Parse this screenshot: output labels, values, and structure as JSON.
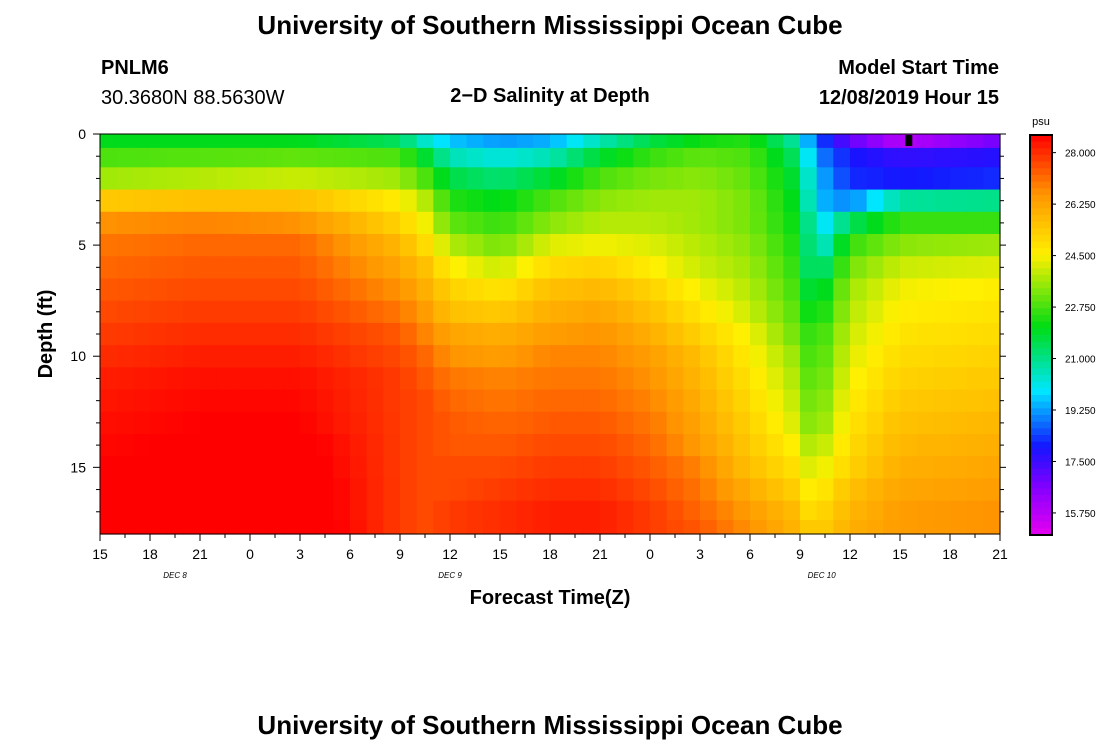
{
  "page": {
    "title_top": "University of Southern Mississippi Ocean Cube",
    "title_bottom": "University of Southern Mississippi Ocean Cube",
    "station_id": "PNLM6",
    "station_coords": "30.3680N 88.5630W",
    "chart_title": "2−D Salinity at Depth",
    "model_start_label": "Model Start Time",
    "model_start_value": "12/08/2019 Hour 15"
  },
  "chart_data": {
    "type": "heatmap",
    "title": "2−D Salinity at Depth",
    "xlabel": "Forecast Time(Z)",
    "ylabel": "Depth (ft)",
    "x_hours_range": [
      0,
      54
    ],
    "x_tick_labels": [
      "15",
      "18",
      "21",
      "0",
      "3",
      "6",
      "9",
      "12",
      "15",
      "18",
      "21",
      "0",
      "3",
      "6",
      "9",
      "12",
      "15",
      "18",
      "21"
    ],
    "day_labels": [
      {
        "label": "DEC 8",
        "hour": 4.5
      },
      {
        "label": "DEC 9",
        "hour": 21
      },
      {
        "label": "DEC 10",
        "hour": 43.3
      }
    ],
    "y_range_ft": [
      0,
      18
    ],
    "y_ticks": [
      "0",
      "5",
      "10",
      "15"
    ],
    "y_tick_values": [
      0,
      5,
      10,
      15
    ],
    "depth_levels_ft": [
      0.25,
      1,
      2,
      3,
      4,
      5,
      6,
      7,
      8,
      9,
      10,
      11,
      12,
      13,
      14,
      15,
      16,
      17,
      17.75
    ],
    "time_hours": [
      0,
      6,
      12,
      18,
      19.5,
      21,
      24,
      27,
      30,
      33,
      36,
      39,
      42,
      42.5,
      43.5,
      45,
      48,
      54
    ],
    "salinity_psu": [
      [
        22.0,
        22.0,
        22.0,
        21.4,
        20.4,
        19.6,
        19.2,
        19.4,
        20.6,
        21.6,
        22.2,
        22.4,
        20.6,
        19.4,
        18.2,
        17.0,
        15.8,
        16.8
      ],
      [
        22.8,
        22.9,
        23.0,
        22.8,
        21.8,
        20.6,
        20.2,
        20.6,
        21.8,
        22.6,
        23.0,
        22.8,
        21.2,
        20.0,
        18.8,
        18.0,
        17.6,
        17.8
      ],
      [
        23.6,
        23.8,
        24.0,
        23.6,
        22.8,
        21.6,
        21.2,
        21.8,
        22.8,
        23.2,
        23.4,
        23.0,
        21.6,
        20.4,
        19.2,
        18.2,
        18.0,
        18.2
      ],
      [
        25.4,
        25.6,
        25.6,
        24.6,
        23.8,
        22.4,
        22.0,
        22.8,
        23.4,
        23.6,
        23.6,
        23.2,
        21.8,
        20.6,
        19.4,
        19.0,
        20.8,
        21.0
      ],
      [
        26.6,
        26.8,
        26.6,
        25.2,
        24.4,
        23.0,
        22.6,
        23.4,
        23.8,
        23.8,
        23.6,
        23.2,
        22.0,
        21.0,
        20.0,
        21.4,
        22.6,
        22.6
      ],
      [
        27.0,
        27.2,
        27.2,
        25.8,
        25.0,
        23.8,
        23.2,
        24.2,
        24.4,
        24.2,
        23.8,
        23.4,
        22.2,
        21.2,
        20.6,
        22.6,
        23.4,
        23.6
      ],
      [
        27.2,
        27.4,
        27.4,
        26.2,
        25.6,
        24.6,
        24.0,
        25.0,
        25.2,
        24.6,
        24.0,
        23.6,
        22.4,
        21.4,
        21.4,
        23.2,
        24.0,
        24.2
      ],
      [
        27.4,
        27.6,
        27.6,
        26.6,
        26.0,
        25.2,
        24.8,
        25.6,
        25.8,
        25.2,
        24.4,
        23.8,
        22.6,
        21.8,
        22.0,
        23.6,
        24.4,
        24.6
      ],
      [
        27.6,
        27.8,
        27.8,
        27.0,
        26.4,
        25.6,
        25.4,
        26.0,
        26.2,
        25.6,
        24.8,
        24.0,
        22.8,
        22.2,
        22.4,
        23.8,
        24.6,
        24.8
      ],
      [
        27.8,
        28.0,
        28.0,
        27.4,
        26.8,
        26.2,
        26.0,
        26.4,
        26.6,
        26.0,
        25.2,
        24.4,
        23.0,
        22.6,
        22.8,
        24.0,
        24.8,
        25.0
      ],
      [
        28.0,
        28.2,
        28.2,
        27.6,
        27.2,
        26.6,
        26.4,
        26.8,
        26.8,
        26.4,
        25.6,
        24.6,
        23.4,
        22.8,
        23.0,
        24.2,
        25.0,
        25.2
      ],
      [
        28.2,
        28.4,
        28.4,
        27.8,
        27.4,
        27.0,
        26.8,
        27.0,
        27.0,
        26.6,
        25.8,
        24.8,
        23.6,
        23.0,
        23.2,
        24.4,
        25.2,
        25.4
      ],
      [
        28.3,
        28.5,
        28.5,
        27.8,
        27.6,
        27.2,
        27.0,
        27.2,
        27.2,
        26.8,
        26.0,
        25.0,
        23.8,
        23.2,
        23.4,
        24.6,
        25.4,
        25.6
      ],
      [
        28.4,
        28.6,
        28.6,
        27.8,
        27.6,
        27.4,
        27.2,
        27.4,
        27.4,
        27.0,
        26.2,
        25.2,
        24.0,
        23.4,
        23.6,
        24.8,
        25.6,
        25.8
      ],
      [
        28.5,
        28.7,
        28.8,
        27.8,
        27.6,
        27.4,
        27.4,
        27.6,
        27.6,
        27.2,
        26.4,
        25.4,
        24.4,
        23.8,
        24.0,
        25.0,
        25.8,
        26.0
      ],
      [
        28.6,
        28.8,
        28.9,
        27.8,
        27.6,
        27.6,
        27.6,
        27.8,
        27.8,
        27.4,
        26.8,
        25.6,
        24.8,
        24.2,
        24.4,
        25.2,
        26.0,
        26.2
      ],
      [
        28.6,
        28.9,
        29.0,
        27.8,
        27.6,
        27.6,
        27.8,
        28.0,
        28.0,
        27.6,
        27.0,
        26.0,
        25.2,
        24.6,
        24.8,
        25.6,
        26.2,
        26.4
      ],
      [
        28.7,
        29.0,
        29.0,
        27.8,
        27.6,
        27.8,
        28.0,
        28.2,
        28.2,
        27.8,
        27.2,
        26.4,
        25.6,
        25.0,
        25.2,
        25.8,
        26.4,
        26.6
      ],
      [
        28.7,
        29.0,
        29.1,
        27.8,
        27.6,
        27.8,
        28.0,
        28.2,
        28.2,
        27.8,
        27.4,
        26.6,
        25.8,
        25.4,
        25.4,
        26.0,
        26.4,
        26.6
      ]
    ],
    "colorbar": {
      "unit": "psu",
      "min": 15.0,
      "max": 28.6,
      "tick_values": [
        15.75,
        17.5,
        19.25,
        21.0,
        22.75,
        24.5,
        26.25,
        28.0
      ],
      "tick_labels": [
        "15.750",
        "17.500",
        "19.250",
        "21.000",
        "22.750",
        "24.500",
        "26.250",
        "28.000"
      ]
    }
  }
}
